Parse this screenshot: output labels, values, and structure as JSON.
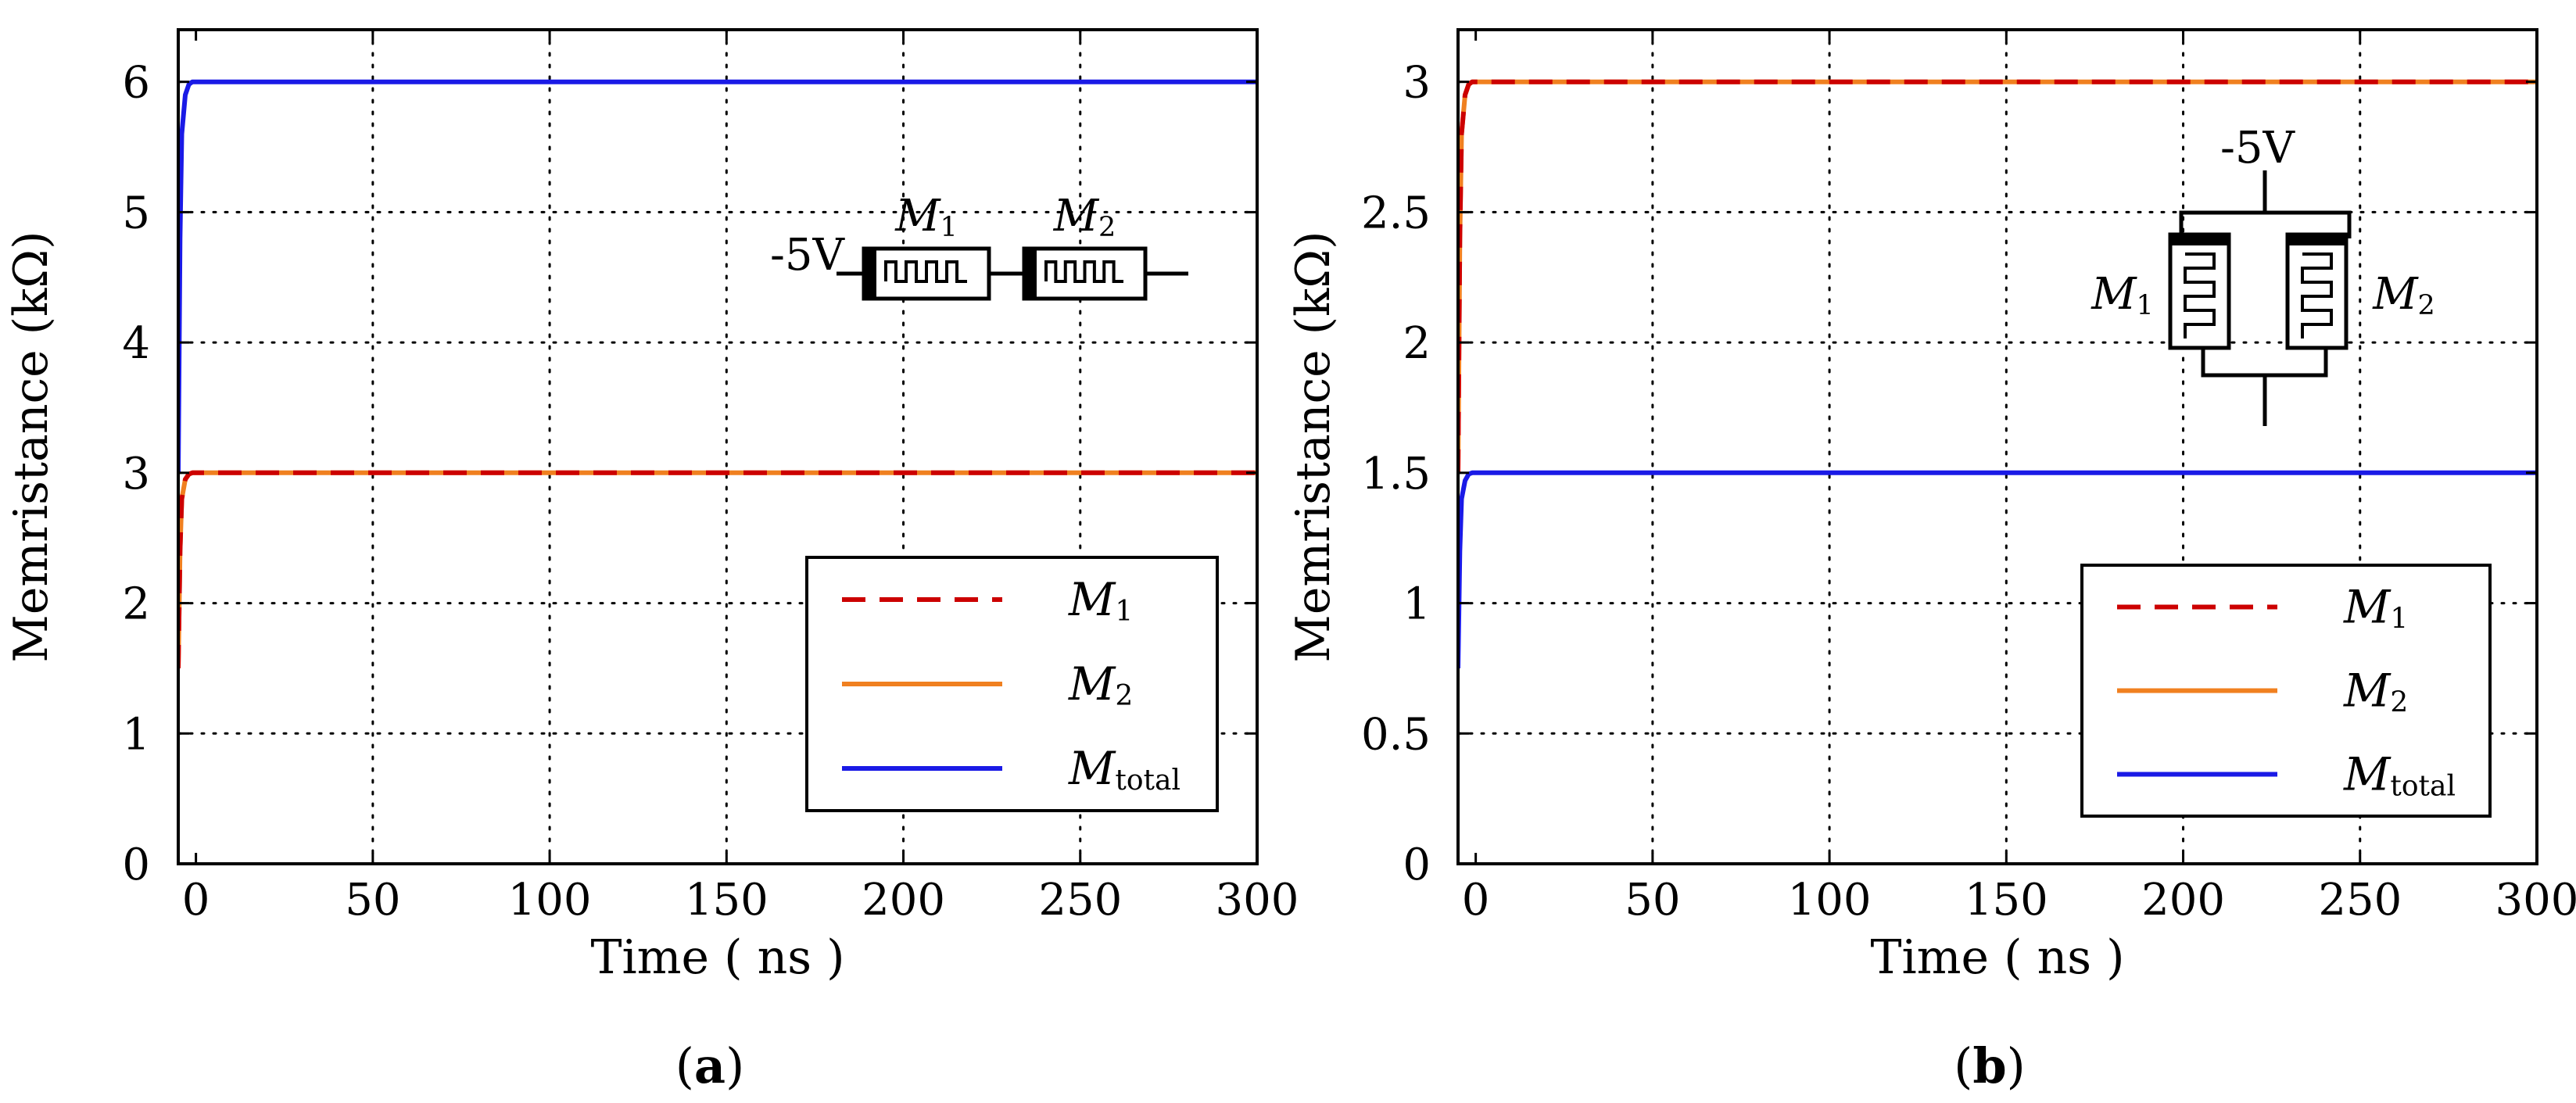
{
  "chart_data": [
    {
      "type": "line",
      "panel_label": "a",
      "xlabel": "Time ( ns )",
      "ylabel": "Memristance (kΩ)",
      "xlim": [
        -5,
        300
      ],
      "ylim": [
        0,
        6.4
      ],
      "xticks": [
        0,
        50,
        100,
        150,
        200,
        250,
        300
      ],
      "yticks": [
        0,
        1,
        2,
        3,
        4,
        5,
        6
      ],
      "ytick_labels": [
        "0",
        "1",
        "2",
        "3",
        "4",
        "5",
        "6"
      ],
      "grid": true,
      "legend_position": "bottom-right",
      "circuit": {
        "type": "series",
        "voltage": "-5V",
        "labels": [
          "M",
          "M"
        ],
        "subscripts": [
          "1",
          "2"
        ]
      },
      "series": [
        {
          "name": "M",
          "sub": "1",
          "color": "#cc0000",
          "dash": "dashed",
          "x": [
            -5,
            -4.5,
            -4,
            -3,
            -2,
            -1,
            0,
            2,
            5,
            300
          ],
          "y": [
            1.5,
            2.4,
            2.8,
            2.95,
            2.99,
            3.0,
            3.0,
            3.0,
            3.0,
            3.0
          ]
        },
        {
          "name": "M",
          "sub": "2",
          "color": "#f08020",
          "dash": "solid",
          "x": [
            -5,
            -4.5,
            -4,
            -3,
            -2,
            -1,
            0,
            2,
            5,
            300
          ],
          "y": [
            1.5,
            2.4,
            2.8,
            2.95,
            2.99,
            3.0,
            3.0,
            3.0,
            3.0,
            3.0
          ]
        },
        {
          "name": "M",
          "sub": "total",
          "color": "#1a1ae6",
          "dash": "solid",
          "x": [
            -5,
            -4.5,
            -4,
            -3,
            -2,
            -1,
            0,
            2,
            5,
            300
          ],
          "y": [
            3.0,
            4.8,
            5.6,
            5.9,
            5.98,
            6.0,
            6.0,
            6.0,
            6.0,
            6.0
          ]
        }
      ]
    },
    {
      "type": "line",
      "panel_label": "b",
      "xlabel": "Time ( ns )",
      "ylabel": "Memristance (kΩ)",
      "xlim": [
        -5,
        300
      ],
      "ylim": [
        0,
        3.2
      ],
      "xticks": [
        0,
        50,
        100,
        150,
        200,
        250,
        300
      ],
      "yticks": [
        0,
        0.5,
        1,
        1.5,
        2,
        2.5,
        3
      ],
      "ytick_labels": [
        "0",
        "0.5",
        "1",
        "1.5",
        "2",
        "2.5",
        "3"
      ],
      "grid": true,
      "legend_position": "bottom-right",
      "circuit": {
        "type": "parallel",
        "voltage": "-5V",
        "labels": [
          "M",
          "M"
        ],
        "subscripts": [
          "1",
          "2"
        ]
      },
      "series": [
        {
          "name": "M",
          "sub": "1",
          "color": "#cc0000",
          "dash": "dashed",
          "x": [
            -5,
            -4.5,
            -4,
            -3,
            -2,
            -1,
            0,
            2,
            5,
            300
          ],
          "y": [
            1.5,
            2.4,
            2.8,
            2.95,
            2.99,
            3.0,
            3.0,
            3.0,
            3.0,
            3.0
          ]
        },
        {
          "name": "M",
          "sub": "2",
          "color": "#f08020",
          "dash": "solid",
          "x": [
            -5,
            -4.5,
            -4,
            -3,
            -2,
            -1,
            0,
            2,
            5,
            300
          ],
          "y": [
            1.5,
            2.4,
            2.8,
            2.95,
            2.99,
            3.0,
            3.0,
            3.0,
            3.0,
            3.0
          ]
        },
        {
          "name": "M",
          "sub": "total",
          "color": "#1a1ae6",
          "dash": "solid",
          "x": [
            -5,
            -4.5,
            -4,
            -3,
            -2,
            -1,
            0,
            2,
            5,
            300
          ],
          "y": [
            0.75,
            1.2,
            1.4,
            1.47,
            1.495,
            1.5,
            1.5,
            1.5,
            1.5,
            1.5
          ]
        }
      ]
    }
  ]
}
